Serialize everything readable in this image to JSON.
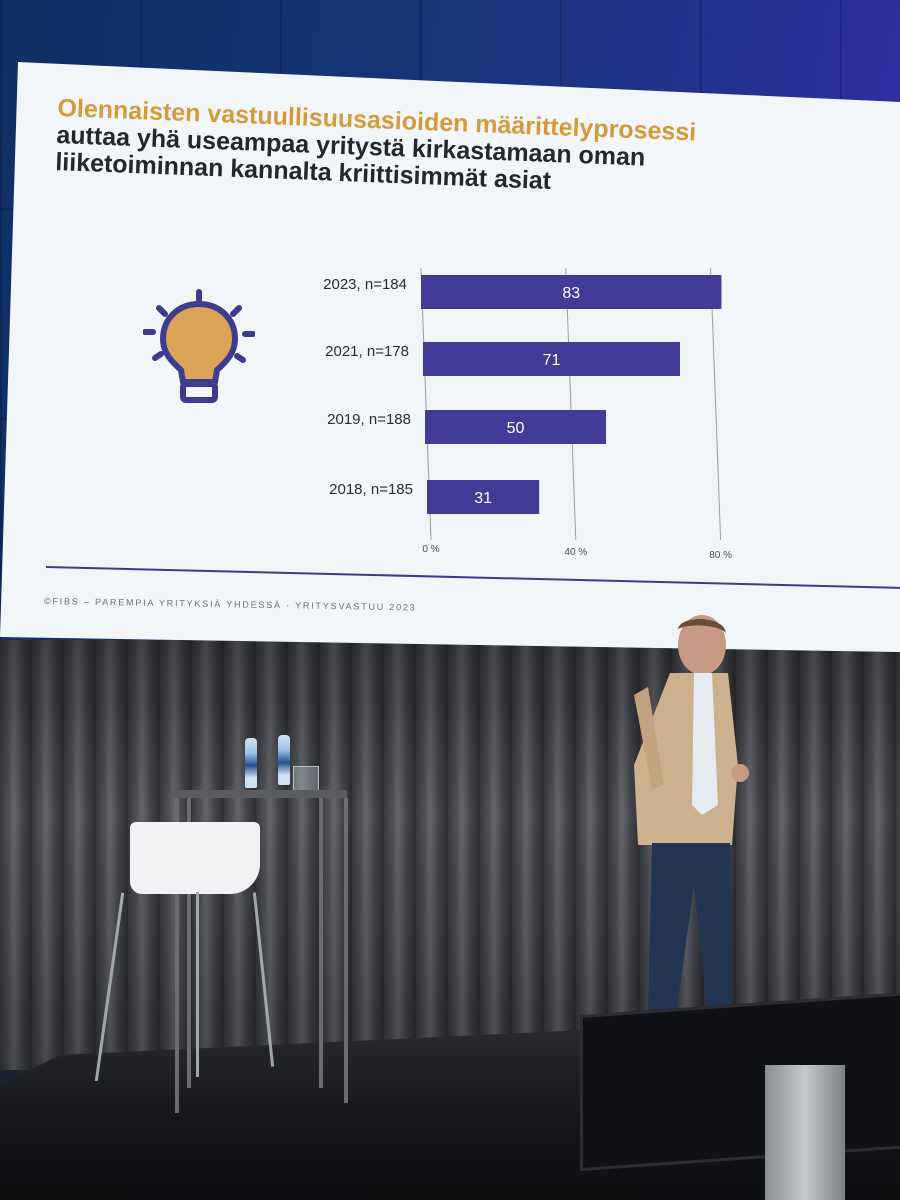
{
  "slide": {
    "title_line1": "Olennaisten vastuullisuusasioiden määrittelyprosessi",
    "title_line2": "auttaa yhä useampaa yritystä kirkastamaan oman",
    "title_line3": "liiketoiminnan kannalta kriittisimmät asiat",
    "footer": "©FIBS – PAREMPIA YRITYKSIÄ YHDESSÄ · YRITYSVASTUU 2023",
    "icon": "lightbulb-icon"
  },
  "chart_data": {
    "type": "bar",
    "orientation": "horizontal",
    "categories": [
      "2023, n=184",
      "2021, n=178",
      "2019, n=188",
      "2018, n=185"
    ],
    "values": [
      83,
      71,
      50,
      31
    ],
    "data_labels": [
      "83",
      "71",
      "50",
      "31"
    ],
    "xlim": [
      0,
      80
    ],
    "xticks": [
      0,
      40,
      80
    ],
    "xtick_labels": [
      "0 %",
      "40 %",
      "80 %"
    ],
    "grid": true,
    "legend": "none",
    "bar_color": "#403c97",
    "title": "",
    "xlabel": "",
    "ylabel": ""
  },
  "colors": {
    "title_accent": "#d39b3c",
    "title_dark": "#26262d",
    "bar": "#403c97",
    "bulb_fill": "#dba357",
    "bulb_stroke": "#3d3b8e"
  }
}
